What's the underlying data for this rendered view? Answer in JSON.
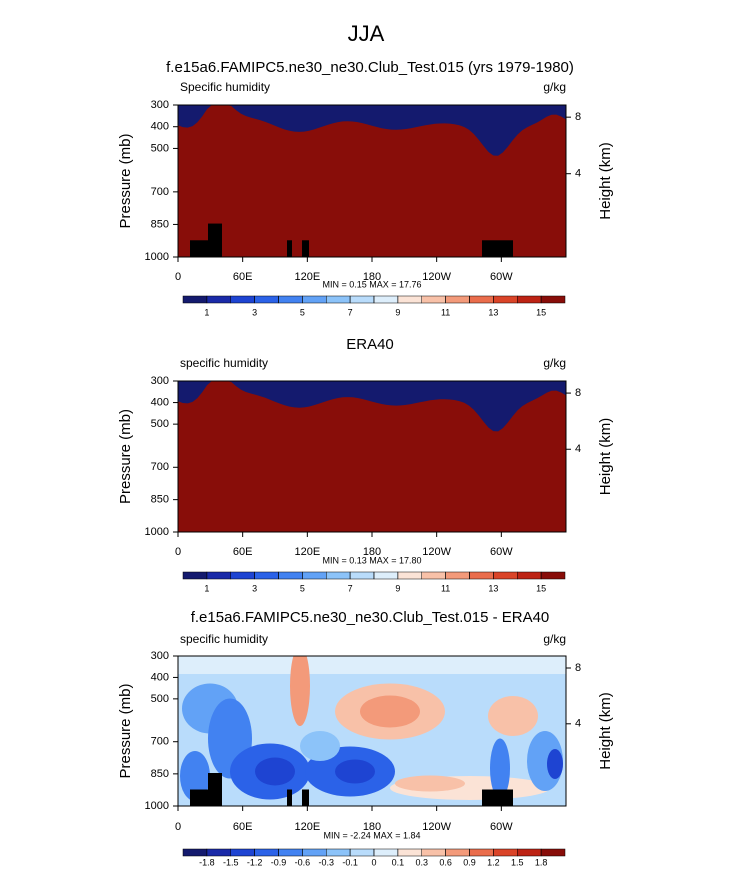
{
  "title": "JJA",
  "chart_data": [
    {
      "type": "contour",
      "title": "f.e15a6.FAMIPC5.ne30_ne30.Club_Test.015 (yrs 1979-1980)",
      "left_label": "Specific humidity",
      "units_label": "g/kg",
      "stats": "MIN =  0.15  MAX =  17.76",
      "ylabel": "Pressure (mb)",
      "y2label": "Height (km)",
      "ylim": [
        300,
        1000
      ],
      "yticks": [
        300,
        400,
        500,
        700,
        850,
        1000
      ],
      "y2ticks": [
        4,
        8
      ],
      "xlim": [
        0,
        360
      ],
      "xticks": [
        0,
        {
          "value": 60,
          "label": "60E"
        },
        {
          "value": 120,
          "label": "120E"
        },
        180,
        {
          "value": 240,
          "label": "120W"
        },
        {
          "value": 300,
          "label": "60W"
        }
      ],
      "levels": [
        1,
        2,
        3,
        4,
        5,
        6,
        7,
        8,
        9,
        10,
        11,
        12,
        13,
        14,
        15
      ],
      "colorbar_labels": [
        1,
        3,
        5,
        7,
        9,
        11,
        13,
        15
      ],
      "colors": [
        "#141a6e",
        "#1a2aa8",
        "#1e44d2",
        "#2b62e8",
        "#4282f1",
        "#62a2f6",
        "#8cc3f9",
        "#b9dcfb",
        "#ddeefb",
        "#fbe3d6",
        "#f8c1a8",
        "#f39a7a",
        "#ea6d4c",
        "#da4428",
        "#bd2314",
        "#880d09"
      ]
    },
    {
      "type": "contour",
      "title": "ERA40",
      "left_label": "specific humidity",
      "units_label": "g/kg",
      "stats": "MIN =  0.13  MAX =  17.80",
      "ylabel": "Pressure (mb)",
      "y2label": "Height (km)",
      "ylim": [
        300,
        1000
      ],
      "yticks": [
        300,
        400,
        500,
        700,
        850,
        1000
      ],
      "y2ticks": [
        4,
        8
      ],
      "xlim": [
        0,
        360
      ],
      "xticks": [
        0,
        {
          "value": 60,
          "label": "60E"
        },
        {
          "value": 120,
          "label": "120E"
        },
        180,
        {
          "value": 240,
          "label": "120W"
        },
        {
          "value": 300,
          "label": "60W"
        }
      ],
      "levels": [
        1,
        2,
        3,
        4,
        5,
        6,
        7,
        8,
        9,
        10,
        11,
        12,
        13,
        14,
        15
      ],
      "colorbar_labels": [
        1,
        3,
        5,
        7,
        9,
        11,
        13,
        15
      ],
      "colors": [
        "#141a6e",
        "#1a2aa8",
        "#1e44d2",
        "#2b62e8",
        "#4282f1",
        "#62a2f6",
        "#8cc3f9",
        "#b9dcfb",
        "#ddeefb",
        "#fbe3d6",
        "#f8c1a8",
        "#f39a7a",
        "#ea6d4c",
        "#da4428",
        "#bd2314",
        "#880d09"
      ]
    },
    {
      "type": "contour",
      "title": "f.e15a6.FAMIPC5.ne30_ne30.Club_Test.015 - ERA40",
      "left_label": "specific humidity",
      "units_label": "g/kg",
      "stats": "MIN = -2.24  MAX =  1.84",
      "ylabel": "Pressure (mb)",
      "y2label": "Height (km)",
      "ylim": [
        300,
        1000
      ],
      "yticks": [
        300,
        400,
        500,
        700,
        850,
        1000
      ],
      "y2ticks": [
        4,
        8
      ],
      "xlim": [
        0,
        360
      ],
      "xticks": [
        0,
        {
          "value": 60,
          "label": "60E"
        },
        {
          "value": 120,
          "label": "120E"
        },
        180,
        {
          "value": 240,
          "label": "120W"
        },
        {
          "value": 300,
          "label": "60W"
        }
      ],
      "levels": [
        -1.8,
        -1.5,
        -1.2,
        -0.9,
        -0.6,
        -0.3,
        -0.1,
        0,
        0.1,
        0.3,
        0.6,
        0.9,
        1.2,
        1.5,
        1.8
      ],
      "colorbar_labels": [
        -1.8,
        -1.5,
        -1.2,
        -0.9,
        -0.6,
        -0.3,
        -0.1,
        0,
        0.1,
        0.3,
        0.6,
        0.9,
        1.2,
        1.5,
        1.8
      ],
      "colors": [
        "#141a6e",
        "#1a2aa8",
        "#1e44d2",
        "#2b62e8",
        "#4282f1",
        "#62a2f6",
        "#8cc3f9",
        "#b9dcfb",
        "#ddeefb",
        "#fbe3d6",
        "#f8c1a8",
        "#f39a7a",
        "#ea6d4c",
        "#da4428",
        "#bd2314",
        "#880d09"
      ]
    }
  ]
}
